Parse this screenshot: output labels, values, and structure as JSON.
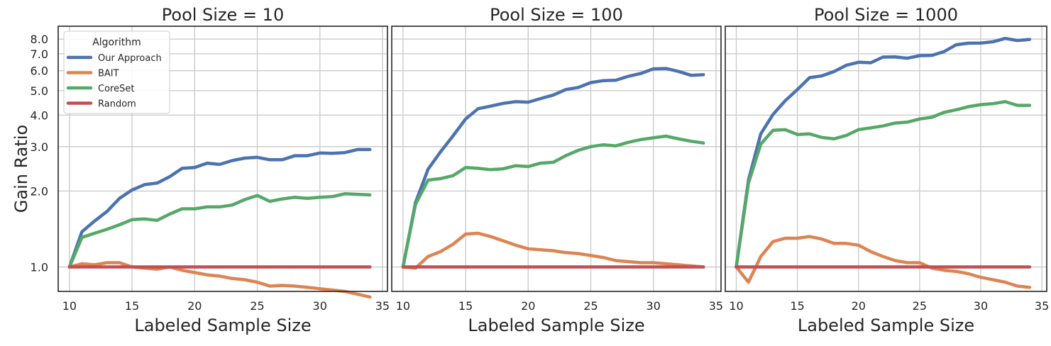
{
  "figure": {
    "ylabel": "Gain Ratio",
    "legend": {
      "title": "Algorithm",
      "placement": "upper-left of first panel",
      "entries": [
        {
          "name": "Our Approach",
          "color": "#4c72b0"
        },
        {
          "name": "BAIT",
          "color": "#dd8452"
        },
        {
          "name": "CoreSet",
          "color": "#55a868"
        },
        {
          "name": "Random",
          "color": "#c44e52"
        }
      ]
    }
  },
  "chart_data": [
    {
      "type": "line",
      "title": "Pool Size = 10",
      "xlabel": "Labeled Sample Size",
      "ylabel": "Gain Ratio",
      "y_scale": "log",
      "xlim": [
        9.1,
        35.4
      ],
      "ylim": [
        0.8,
        9.0
      ],
      "x_ticks": [
        10,
        15,
        20,
        25,
        30,
        35
      ],
      "y_ticks": [
        "1.0",
        "2.0",
        "3.0",
        "4.0",
        "5.0",
        "6.0",
        "7.0",
        "8.0"
      ],
      "grid": true,
      "x": [
        10,
        11,
        12,
        13,
        14,
        15,
        16,
        17,
        18,
        19,
        20,
        21,
        22,
        23,
        24,
        25,
        26,
        27,
        28,
        29,
        30,
        31,
        32,
        33,
        34
      ],
      "series": [
        {
          "name": "Our Approach",
          "color": "#4c72b0",
          "values": [
            1.0,
            1.38,
            1.52,
            1.66,
            1.87,
            2.02,
            2.12,
            2.15,
            2.28,
            2.46,
            2.48,
            2.58,
            2.55,
            2.64,
            2.7,
            2.72,
            2.66,
            2.66,
            2.76,
            2.76,
            2.83,
            2.82,
            2.84,
            2.92,
            2.92
          ]
        },
        {
          "name": "BAIT",
          "color": "#dd8452",
          "values": [
            1.0,
            1.03,
            1.02,
            1.04,
            1.04,
            1.0,
            0.99,
            0.98,
            1.0,
            0.97,
            0.95,
            0.93,
            0.92,
            0.9,
            0.89,
            0.87,
            0.84,
            0.845,
            0.84,
            0.83,
            0.82,
            0.81,
            0.8,
            0.78,
            0.76
          ]
        },
        {
          "name": "CoreSet",
          "color": "#55a868",
          "values": [
            1.0,
            1.31,
            1.36,
            1.41,
            1.47,
            1.54,
            1.55,
            1.53,
            1.62,
            1.7,
            1.7,
            1.73,
            1.73,
            1.76,
            1.85,
            1.92,
            1.82,
            1.86,
            1.89,
            1.87,
            1.89,
            1.9,
            1.95,
            1.94,
            1.93
          ]
        },
        {
          "name": "Random",
          "color": "#c44e52",
          "values": [
            1.0,
            1.0,
            1.0,
            1.0,
            1.0,
            1.0,
            1.0,
            1.0,
            1.0,
            1.0,
            1.0,
            1.0,
            1.0,
            1.0,
            1.0,
            1.0,
            1.0,
            1.0,
            1.0,
            1.0,
            1.0,
            1.0,
            1.0,
            1.0,
            1.0
          ]
        }
      ]
    },
    {
      "type": "line",
      "title": "Pool Size = 100",
      "xlabel": "Labeled Sample Size",
      "y_scale": "log",
      "xlim": [
        9.1,
        35.4
      ],
      "ylim": [
        0.8,
        9.0
      ],
      "x_ticks": [
        10,
        15,
        20,
        25,
        30,
        35
      ],
      "grid": true,
      "x": [
        10,
        11,
        12,
        13,
        14,
        15,
        16,
        17,
        18,
        19,
        20,
        21,
        22,
        23,
        24,
        25,
        26,
        27,
        28,
        29,
        30,
        31,
        32,
        33,
        34
      ],
      "series": [
        {
          "name": "Our Approach",
          "color": "#4c72b0",
          "values": [
            1.0,
            1.8,
            2.44,
            2.86,
            3.31,
            3.86,
            4.24,
            4.34,
            4.45,
            4.52,
            4.5,
            4.65,
            4.8,
            5.05,
            5.15,
            5.38,
            5.48,
            5.5,
            5.7,
            5.85,
            6.1,
            6.12,
            5.96,
            5.75,
            5.78
          ]
        },
        {
          "name": "BAIT",
          "color": "#dd8452",
          "values": [
            1.0,
            0.99,
            1.1,
            1.15,
            1.23,
            1.35,
            1.36,
            1.32,
            1.27,
            1.22,
            1.18,
            1.17,
            1.16,
            1.14,
            1.13,
            1.11,
            1.09,
            1.06,
            1.05,
            1.04,
            1.04,
            1.03,
            1.02,
            1.01,
            1.0
          ]
        },
        {
          "name": "CoreSet",
          "color": "#55a868",
          "values": [
            1.0,
            1.77,
            2.21,
            2.24,
            2.3,
            2.48,
            2.46,
            2.43,
            2.45,
            2.52,
            2.5,
            2.58,
            2.6,
            2.76,
            2.9,
            3.0,
            3.05,
            3.02,
            3.12,
            3.2,
            3.25,
            3.3,
            3.22,
            3.15,
            3.1
          ]
        },
        {
          "name": "Random",
          "color": "#c44e52",
          "values": [
            1.0,
            1.0,
            1.0,
            1.0,
            1.0,
            1.0,
            1.0,
            1.0,
            1.0,
            1.0,
            1.0,
            1.0,
            1.0,
            1.0,
            1.0,
            1.0,
            1.0,
            1.0,
            1.0,
            1.0,
            1.0,
            1.0,
            1.0,
            1.0,
            1.0
          ]
        }
      ]
    },
    {
      "type": "line",
      "title": "Pool Size = 1000",
      "xlabel": "Labeled Sample Size",
      "y_scale": "log",
      "xlim": [
        9.1,
        35.4
      ],
      "ylim": [
        0.8,
        9.0
      ],
      "x_ticks": [
        10,
        15,
        20,
        25,
        30,
        35
      ],
      "grid": true,
      "x": [
        10,
        11,
        12,
        13,
        14,
        15,
        16,
        17,
        18,
        19,
        20,
        21,
        22,
        23,
        24,
        25,
        26,
        27,
        28,
        29,
        30,
        31,
        32,
        33,
        34
      ],
      "series": [
        {
          "name": "Our Approach",
          "color": "#4c72b0",
          "values": [
            1.0,
            2.21,
            3.37,
            4.02,
            4.56,
            5.05,
            5.63,
            5.72,
            5.95,
            6.3,
            6.48,
            6.45,
            6.79,
            6.8,
            6.72,
            6.88,
            6.9,
            7.14,
            7.6,
            7.71,
            7.72,
            7.81,
            8.05,
            7.9,
            7.98
          ]
        },
        {
          "name": "BAIT",
          "color": "#dd8452",
          "values": [
            1.0,
            0.87,
            1.1,
            1.26,
            1.3,
            1.3,
            1.32,
            1.29,
            1.24,
            1.24,
            1.22,
            1.15,
            1.1,
            1.06,
            1.04,
            1.04,
            0.99,
            0.97,
            0.96,
            0.94,
            0.91,
            0.89,
            0.87,
            0.84,
            0.83
          ]
        },
        {
          "name": "CoreSet",
          "color": "#55a868",
          "values": [
            1.0,
            2.15,
            3.07,
            3.48,
            3.5,
            3.35,
            3.37,
            3.26,
            3.22,
            3.32,
            3.5,
            3.56,
            3.62,
            3.72,
            3.75,
            3.86,
            3.92,
            4.1,
            4.2,
            4.32,
            4.4,
            4.44,
            4.52,
            4.37,
            4.37
          ]
        },
        {
          "name": "Random",
          "color": "#c44e52",
          "values": [
            1.0,
            1.0,
            1.0,
            1.0,
            1.0,
            1.0,
            1.0,
            1.0,
            1.0,
            1.0,
            1.0,
            1.0,
            1.0,
            1.0,
            1.0,
            1.0,
            1.0,
            1.0,
            1.0,
            1.0,
            1.0,
            1.0,
            1.0,
            1.0,
            1.0
          ]
        }
      ]
    }
  ]
}
